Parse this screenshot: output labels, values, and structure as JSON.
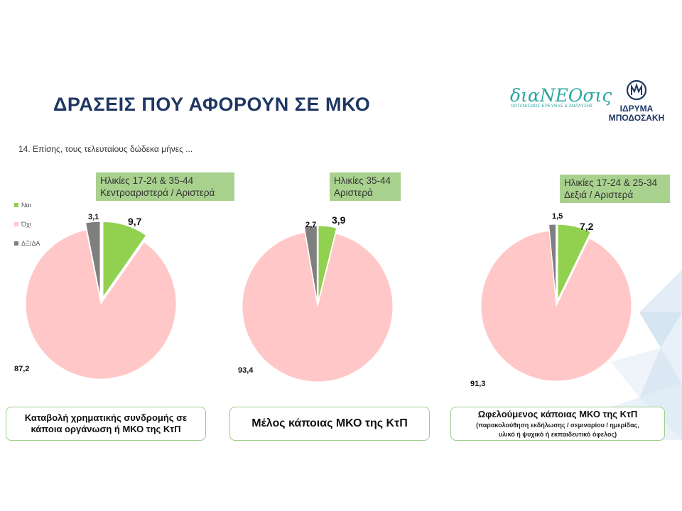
{
  "page": {
    "title": "ΔΡΑΣΕΙΣ ΠΟΥ ΑΦΟΡΟΥΝ ΣΕ ΜΚΟ",
    "subtitle": "14. Επίσης, τους τελευταίους δώδεκα μήνες ..."
  },
  "logos": {
    "dianeosis": {
      "name": "διαNEOσις",
      "tagline": "ΟΡΓΑΝΙΣΜΟΣ ΕΡΕΥΝΑΣ & ΑΝΑΛΥΣΗΣ"
    },
    "bodossaki": {
      "line1": "ΙΔΡΥΜΑ",
      "line2": "ΜΠΟΔΟΣΑΚΗ"
    }
  },
  "colors": {
    "yes": "#92d050",
    "no": "#ffc7c7",
    "dk": "#7f7f7f"
  },
  "legend": [
    {
      "label": "Ναι",
      "color": "#92d050"
    },
    {
      "label": "Όχι",
      "color": "#ffc7c7"
    },
    {
      "label": "ΔΞ/ΔΑ",
      "color": "#7f7f7f"
    }
  ],
  "callouts": [
    {
      "line1": "Ηλικίες 17-24 & 35-44",
      "line2": "Κεντροαριστερά / Αριστερά"
    },
    {
      "line1": "Ηλικίες 35-44",
      "line2": "Αριστερά"
    },
    {
      "line1": "Ηλικίες 17-24 & 25-34",
      "line2": "Δεξιά / Αριστερά"
    }
  ],
  "captions": [
    {
      "line1": "Καταβολή χρηματικής συνδρομής σε",
      "line2": "κάποια οργάνωση ή ΜΚΟ της ΚτΠ"
    },
    {
      "line1": "Μέλος κάποιας ΜΚΟ της ΚτΠ"
    },
    {
      "line1": "Ωφελούμενος κάποιας ΜΚΟ της ΚτΠ",
      "line2": "(παρακολούθηση εκδήλωσης / σεμιναρίου / ημερίδας,",
      "line3": "υλικό ή ψυχικό ή εκπαιδευτικό όφελος)"
    }
  ],
  "chart_data": [
    {
      "type": "pie",
      "categories": [
        "Ναι",
        "Όχι",
        "ΔΞ/ΔΑ"
      ],
      "values": [
        9.7,
        87.2,
        3.1
      ],
      "labels": [
        "9,7",
        "87,2",
        "3,1"
      ]
    },
    {
      "type": "pie",
      "categories": [
        "Ναι",
        "Όχι",
        "ΔΞ/ΔΑ"
      ],
      "values": [
        3.9,
        93.4,
        2.7
      ],
      "labels": [
        "3,9",
        "93,4",
        "2,7"
      ]
    },
    {
      "type": "pie",
      "categories": [
        "Ναι",
        "Όχι",
        "ΔΞ/ΔΑ"
      ],
      "values": [
        7.2,
        91.3,
        1.5
      ],
      "labels": [
        "7,2",
        "91,3",
        "1,5"
      ]
    }
  ]
}
